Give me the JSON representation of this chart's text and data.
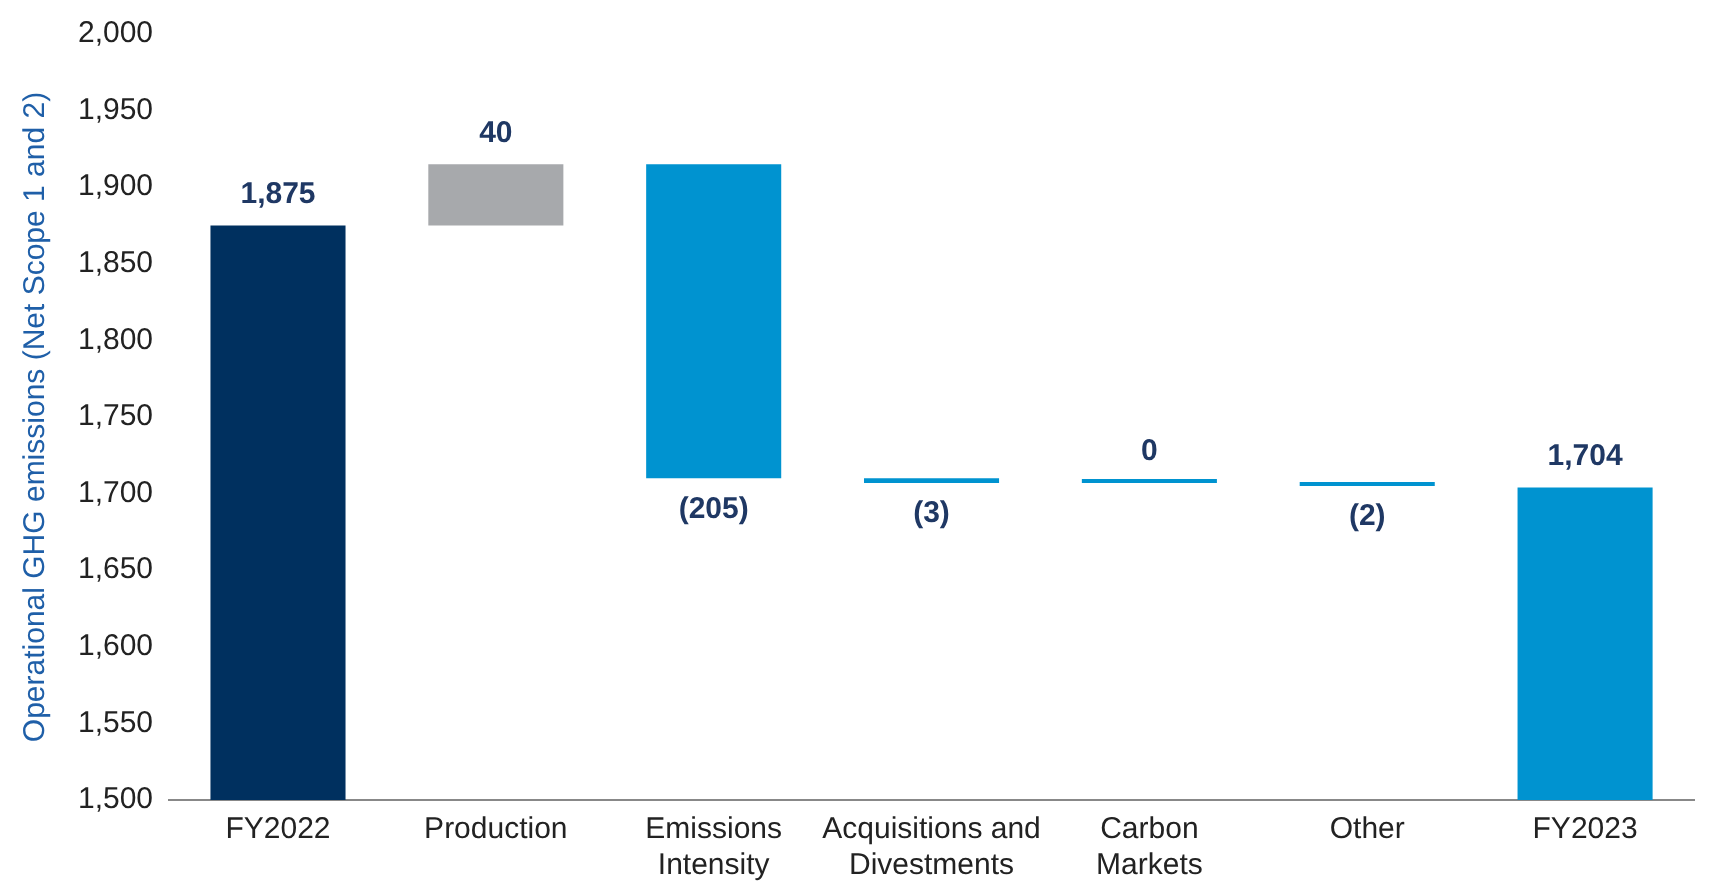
{
  "chart_data": {
    "type": "bar",
    "ylabel": "Operational GHG emissions (Net Scope 1 and 2)",
    "categories": [
      "FY2022",
      "Production",
      "Emissions Intensity",
      "Acquisitions and Divestments",
      "Carbon Markets",
      "Other",
      "FY2023"
    ],
    "values": [
      1875,
      40,
      -205,
      -3,
      0,
      -2,
      1704
    ],
    "base": [
      null,
      1875,
      1915,
      1710,
      1707,
      1707,
      null
    ],
    "colors": [
      "#00305f",
      "#a7a9ac",
      "#0093d0",
      "#0093d0",
      "#0093d0",
      "#0093d0",
      "#0093d0"
    ],
    "value_labels": [
      "1,875",
      "40",
      "(205)",
      "(3)",
      "0",
      "(2)",
      "1,704"
    ],
    "ylim": [
      1500,
      2000
    ],
    "yticks": [
      {
        "value": 1500,
        "label": "1,500"
      },
      {
        "value": 1550,
        "label": "1,550"
      },
      {
        "value": 1600,
        "label": "1,600"
      },
      {
        "value": 1650,
        "label": "1,650"
      },
      {
        "value": 1700,
        "label": "1,700"
      },
      {
        "value": 1750,
        "label": "1,750"
      },
      {
        "value": 1800,
        "label": "1,800"
      },
      {
        "value": 1850,
        "label": "1,850"
      },
      {
        "value": 1900,
        "label": "1,900"
      },
      {
        "value": 1950,
        "label": "1,950"
      },
      {
        "value": 2000,
        "label": "2,000"
      }
    ],
    "grid": false,
    "legend": false
  }
}
